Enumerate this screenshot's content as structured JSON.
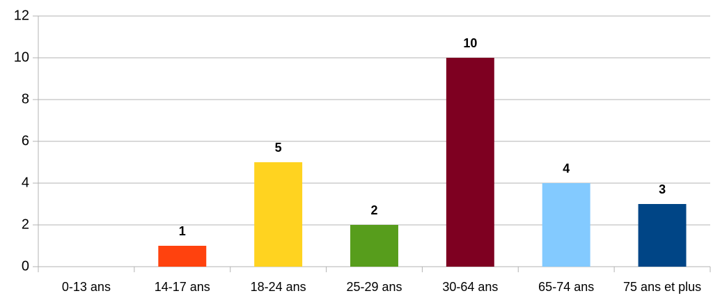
{
  "chart_data": {
    "type": "bar",
    "categories": [
      "0-13 ans",
      "14-17 ans",
      "18-24 ans",
      "25-29 ans",
      "30-64 ans",
      "65-74 ans",
      "75 ans et plus"
    ],
    "values": [
      0,
      1,
      5,
      2,
      10,
      4,
      3
    ],
    "colors": [
      "#004586",
      "#ff420e",
      "#ffd320",
      "#579d1c",
      "#7e0021",
      "#83caff",
      "#004586"
    ],
    "ylim": [
      0,
      12
    ],
    "yticks": [
      0,
      2,
      4,
      6,
      8,
      10,
      12
    ],
    "grid": true
  }
}
